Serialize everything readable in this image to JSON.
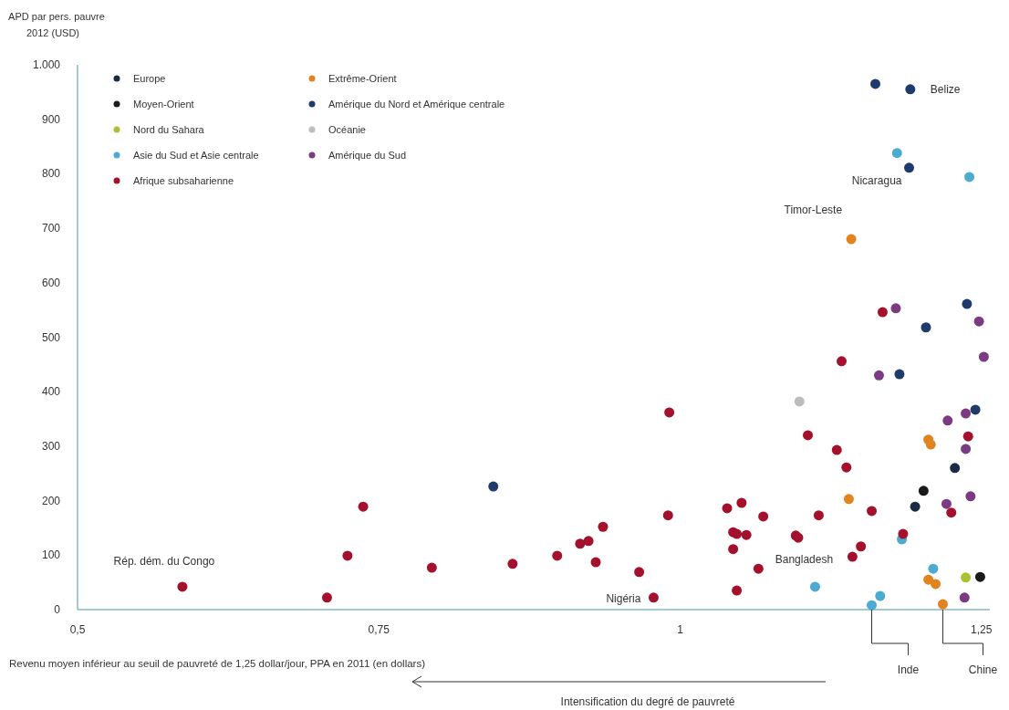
{
  "chart_data": {
    "type": "scatter",
    "ylabel": "APD par pers. pauvre\n2012 (USD)",
    "xlabel": "Revenu moyen inférieur au seuil de pauvreté de 1,25 dollar/jour,  PPA en 2011 (en dollars)",
    "xlim": [
      0.5,
      1.257
    ],
    "xticks": [
      {
        "value": 0.5,
        "label": "0,5"
      },
      {
        "value": 0.75,
        "label": "0,75"
      },
      {
        "value": 1,
        "label": "1"
      },
      {
        "value": 1.25,
        "label": "1,25"
      }
    ],
    "ylim": [
      0,
      1000
    ],
    "yticks": [
      0,
      100,
      200,
      300,
      400,
      500,
      600,
      700,
      800,
      900,
      {
        "value": 1000,
        "label": "1.000"
      }
    ],
    "legend": "top left",
    "marker": "circle",
    "grid": false,
    "series": [
      {
        "name": "Europe",
        "color": "#1c2b45",
        "x": [
          1.228,
          1.195
        ],
        "values": [
          260,
          189
        ]
      },
      {
        "name": "Moyen-Orient",
        "color": "#1a1a1a",
        "x": [
          1.202,
          1.249
        ],
        "values": [
          218,
          60
        ]
      },
      {
        "name": "Nord du Sahara",
        "color": "#a9c234",
        "x": [
          1.237
        ],
        "values": [
          59
        ]
      },
      {
        "name": "Asie du Sud et Asie centrale",
        "color": "#4daad0",
        "x": [
          1.18,
          1.24,
          1.184,
          1.21,
          1.112,
          1.166,
          1.159
        ],
        "values": [
          838,
          794,
          129,
          75,
          42,
          25,
          8
        ]
      },
      {
        "name": "Afrique subsaharienne",
        "color": "#a3112d",
        "x": [
          1.168,
          1.134,
          1.106,
          1.13,
          1.138,
          1.239,
          1.115,
          1.159,
          1.225,
          1.098,
          1.096,
          1.185,
          1.15,
          1.143,
          0.991,
          0.99,
          1.039,
          1.051,
          1.069,
          1.044,
          1.047,
          1.055,
          1.044,
          1.065,
          1.047,
          0.978,
          0.936,
          0.917,
          0.924,
          0.93,
          0.898,
          0.966,
          0.861,
          0.587,
          0.707,
          0.724,
          0.737,
          0.794
        ],
        "values": [
          546,
          456,
          320,
          293,
          261,
          318,
          173,
          181,
          178,
          132,
          136,
          139,
          116,
          97,
          362,
          173,
          186,
          196,
          171,
          142,
          139,
          137,
          111,
          75,
          35,
          22,
          152,
          121,
          126,
          87,
          99,
          69,
          84,
          42,
          22,
          99,
          189,
          77
        ]
      },
      {
        "name": "Extrême-Orient",
        "color": "#e2831f",
        "x": [
          1.142,
          1.206,
          1.208,
          1.14,
          1.206,
          1.212,
          1.218
        ],
        "values": [
          680,
          312,
          303,
          203,
          55,
          47,
          10
        ]
      },
      {
        "name": "Amérique du Nord et Amérique centrale",
        "color": "#1f3b6b",
        "x": [
          1.162,
          1.191,
          1.19,
          1.238,
          1.204,
          1.182,
          1.245,
          0.845
        ],
        "values": [
          965,
          955,
          811,
          561,
          518,
          432,
          367,
          226
        ]
      },
      {
        "name": "Océanie",
        "color": "#bdbdbd",
        "x": [
          1.099
        ],
        "values": [
          382
        ]
      },
      {
        "name": "Amérique du Sud",
        "color": "#7b3a82",
        "x": [
          1.179,
          1.248,
          1.252,
          1.165,
          1.237,
          1.222,
          1.237,
          1.241,
          1.221,
          1.236
        ],
        "values": [
          553,
          529,
          464,
          430,
          360,
          347,
          295,
          208,
          194,
          22
        ]
      }
    ],
    "annotations": [
      {
        "text": "Belize",
        "x": 1.191,
        "y": 955
      },
      {
        "text": "Nicaragua",
        "x": 1.19,
        "y": 811
      },
      {
        "text": "Timor-Leste",
        "x": 1.142,
        "y": 680
      },
      {
        "text": "Bangladesh",
        "x": 1.112,
        "y": 42
      },
      {
        "text": "Nigéria",
        "x": 0.978,
        "y": 22
      },
      {
        "text": "Rép. dém. du Congo",
        "x": 0.587,
        "y": 42
      },
      {
        "text": "Inde",
        "x": 1.159,
        "y": 8
      },
      {
        "text": "Chine",
        "x": 1.218,
        "y": 10
      },
      "Intensification du degré de pauvreté"
    ]
  }
}
